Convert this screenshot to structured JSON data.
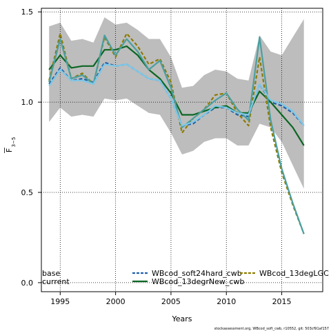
{
  "chart_data": {
    "type": "line",
    "xlabel": "Years",
    "ylabel_main": "F",
    "ylabel_sub": "3−5",
    "xlim": [
      1993.3,
      2018.7
    ],
    "ylim": [
      -0.05,
      1.52
    ],
    "x_ticks": [
      1995,
      2000,
      2005,
      2010,
      2015
    ],
    "y_ticks": [
      0.0,
      0.5,
      1.0,
      1.5
    ],
    "x_tick_labels": [
      "1995",
      "2000",
      "2005",
      "2010",
      "2015"
    ],
    "y_tick_labels": [
      "0.0",
      "0.5",
      "1.0",
      "1.5"
    ],
    "grid": true,
    "x": [
      1994,
      1995,
      1996,
      1997,
      1998,
      1999,
      2000,
      2001,
      2002,
      2003,
      2004,
      2005,
      2006,
      2007,
      2008,
      2009,
      2010,
      2011,
      2012,
      2013,
      2014,
      2015,
      2016,
      2017
    ],
    "band": {
      "upper": [
        1.42,
        1.44,
        1.34,
        1.35,
        1.33,
        1.47,
        1.43,
        1.44,
        1.4,
        1.35,
        1.35,
        1.25,
        1.08,
        1.09,
        1.15,
        1.18,
        1.17,
        1.13,
        1.12,
        1.37,
        1.28,
        1.26,
        1.36,
        1.46
      ],
      "lower": [
        0.89,
        0.97,
        0.92,
        0.93,
        0.92,
        1.02,
        1.01,
        1.02,
        0.98,
        0.94,
        0.93,
        0.83,
        0.71,
        0.73,
        0.78,
        0.8,
        0.8,
        0.76,
        0.76,
        0.88,
        0.86,
        0.78,
        0.65,
        0.52
      ]
    },
    "series": [
      {
        "name": "WBcod_soft24hard_cwb",
        "style": "dashed",
        "color": "#1f5fa8",
        "values": [
          1.1,
          1.19,
          1.12,
          1.13,
          1.11,
          1.22,
          1.2,
          1.21,
          1.17,
          1.13,
          1.12,
          1.02,
          0.87,
          0.88,
          0.93,
          0.97,
          0.97,
          0.93,
          0.92,
          1.1,
          1.0,
          0.98,
          0.94,
          0.87
        ]
      },
      {
        "name": "WBcod_13degrNew_cwb",
        "style": "solid",
        "color": "#0b6623",
        "values": [
          1.18,
          1.26,
          1.19,
          1.2,
          1.2,
          1.29,
          1.29,
          1.31,
          1.26,
          1.18,
          1.13,
          1.05,
          0.93,
          0.93,
          0.95,
          0.97,
          0.98,
          0.94,
          0.94,
          1.06,
          1.0,
          0.93,
          0.86,
          0.76
        ]
      },
      {
        "name": "WBcod_13degLGC",
        "style": "dashed",
        "color": "#8c7a00",
        "values": [
          1.12,
          1.38,
          1.13,
          1.16,
          1.1,
          1.36,
          1.25,
          1.38,
          1.31,
          1.21,
          1.24,
          1.11,
          0.83,
          0.91,
          0.96,
          1.04,
          1.05,
          0.94,
          0.87,
          1.25,
          0.86,
          0.61,
          0.43,
          0.27
        ]
      },
      {
        "name": "base",
        "style": "solid",
        "color": "#4a9fa0",
        "values": [
          1.11,
          1.35,
          1.13,
          1.15,
          1.1,
          1.37,
          1.26,
          1.35,
          1.28,
          1.18,
          1.23,
          1.08,
          0.86,
          0.91,
          0.96,
          1.01,
          1.05,
          0.96,
          0.9,
          1.36,
          0.9,
          0.63,
          0.44,
          0.27
        ]
      },
      {
        "name": "current",
        "style": "solid",
        "color": "#7cc8e8",
        "values": [
          1.09,
          1.18,
          1.12,
          1.12,
          1.1,
          1.21,
          1.2,
          1.21,
          1.17,
          1.13,
          1.12,
          1.02,
          0.87,
          0.89,
          0.93,
          0.98,
          0.97,
          0.94,
          0.93,
          1.1,
          1.01,
          0.99,
          0.95,
          0.87
        ]
      }
    ],
    "legend": {
      "placement": "bottom",
      "entries": [
        {
          "label": "base",
          "color": "#4a9fa0",
          "style": "plain"
        },
        {
          "label": "current",
          "color": "#7cc8e8",
          "style": "plain"
        },
        {
          "label": "WBcod_soft24hard_cwb",
          "color": "#1f5fa8",
          "style": "dashed"
        },
        {
          "label": "WBcod_13degrNew_cwb",
          "color": "#0b6623",
          "style": "solid"
        },
        {
          "label": "WBcod_13degLGC",
          "color": "#8c7a00",
          "style": "dashed"
        }
      ]
    }
  },
  "footer": "stockassessment.org, WBcod_soft_cwb, r10552, git: 503cf91af157",
  "colors": {
    "band": "#bdbdbd",
    "grid": "#000000"
  }
}
